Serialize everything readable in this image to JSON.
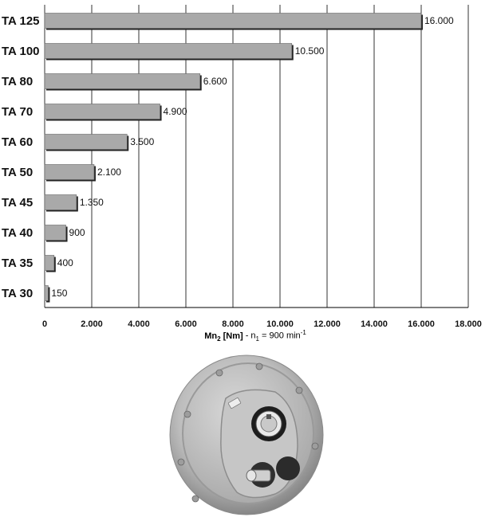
{
  "chart_data": {
    "type": "bar",
    "orientation": "horizontal",
    "categories": [
      "TA 125",
      "TA 100",
      "TA 80",
      "TA 70",
      "TA 60",
      "TA 50",
      "TA 45",
      "TA 40",
      "TA 35",
      "TA 30"
    ],
    "values": [
      16000,
      10500,
      6600,
      4900,
      3500,
      2100,
      1350,
      900,
      400,
      150
    ],
    "value_labels": [
      "16.000",
      "10.500",
      "6.600",
      "4.900",
      "3.500",
      "2.100",
      "1.350",
      "900",
      "400",
      "150"
    ],
    "xlim": [
      0,
      18000
    ],
    "xticks": [
      0,
      2000,
      4000,
      6000,
      8000,
      10000,
      12000,
      14000,
      16000,
      18000
    ],
    "xtick_labels": [
      "0",
      "2.000",
      "4.000",
      "6.000",
      "8.000",
      "10.000",
      "12.000",
      "14.000",
      "16.000",
      "18.000"
    ],
    "xlabel": {
      "mn": "Mn",
      "mn_sub": "2",
      "unit": " [Nm]",
      "rest": " - n",
      "n_sub": "1",
      "eq": " = 900 min",
      "sup": "-1"
    },
    "grid": "vertical",
    "bar_color": "#a9a9a9",
    "bar_edge_color": "#111111"
  },
  "product_image": {
    "body_color": "#bdbdbd"
  }
}
